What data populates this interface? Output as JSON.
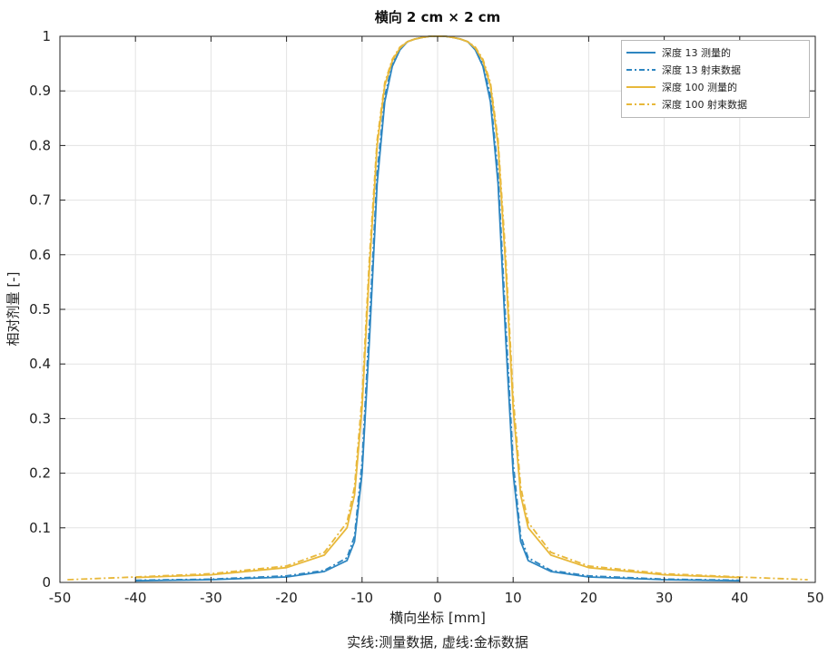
{
  "chart_data": {
    "type": "line",
    "title": "横向 2 cm × 2 cm",
    "xlabel": "横向坐标 [mm]",
    "ylabel": "相对剂量 [-]",
    "caption": "实线:测量数据, 虚线:金标数据",
    "xlim": [
      -50,
      50
    ],
    "ylim": [
      0,
      1
    ],
    "xticks": [
      "-50",
      "-40",
      "-30",
      "-20",
      "-10",
      "0",
      "10",
      "20",
      "30",
      "40",
      "50"
    ],
    "yticks": [
      "0",
      "0.1",
      "0.2",
      "0.3",
      "0.4",
      "0.5",
      "0.6",
      "0.7",
      "0.8",
      "0.9",
      "1"
    ],
    "grid": true,
    "legend_position": "top-right",
    "colors": {
      "depth13": "#2E86C1",
      "depth100": "#E8B83A"
    },
    "series": [
      {
        "name": "深度 13 测量的",
        "style": "solid",
        "color": "#2E86C1",
        "x": [
          -40,
          -30,
          -20,
          -15,
          -12,
          -11,
          -10,
          -9,
          -8,
          -7,
          -6,
          -5,
          -4,
          -3,
          -2,
          -1,
          0,
          1,
          2,
          3,
          4,
          5,
          6,
          7,
          8,
          9,
          10,
          11,
          12,
          15,
          20,
          30,
          40
        ],
        "y": [
          0.003,
          0.005,
          0.01,
          0.02,
          0.04,
          0.075,
          0.2,
          0.45,
          0.73,
          0.88,
          0.945,
          0.975,
          0.99,
          0.995,
          0.998,
          1.0,
          1.0,
          1.0,
          0.998,
          0.995,
          0.99,
          0.975,
          0.945,
          0.88,
          0.73,
          0.45,
          0.2,
          0.075,
          0.04,
          0.02,
          0.01,
          0.005,
          0.003
        ]
      },
      {
        "name": "深度 13 射束数据",
        "style": "dashdot",
        "color": "#2E86C1",
        "x": [
          -40,
          -30,
          -20,
          -15,
          -12,
          -11,
          -10,
          -9,
          -8,
          -7,
          -6,
          -5,
          -4,
          -3,
          -2,
          -1,
          0,
          1,
          2,
          3,
          4,
          5,
          6,
          7,
          8,
          9,
          10,
          11,
          12,
          15,
          20,
          30,
          40
        ],
        "y": [
          0.004,
          0.006,
          0.012,
          0.022,
          0.045,
          0.085,
          0.22,
          0.48,
          0.75,
          0.89,
          0.95,
          0.978,
          0.99,
          0.995,
          0.998,
          1.0,
          1.0,
          1.0,
          0.998,
          0.995,
          0.99,
          0.978,
          0.95,
          0.89,
          0.75,
          0.48,
          0.22,
          0.085,
          0.045,
          0.022,
          0.012,
          0.006,
          0.004
        ]
      },
      {
        "name": "深度 100 测量的",
        "style": "solid",
        "color": "#E8B83A",
        "x": [
          -40,
          -30,
          -20,
          -15,
          -12,
          -11,
          -10,
          -9,
          -8,
          -7,
          -6,
          -5,
          -4,
          -3,
          -2,
          -1,
          0,
          1,
          2,
          3,
          4,
          5,
          6,
          7,
          8,
          9,
          10,
          11,
          12,
          15,
          20,
          30,
          40
        ],
        "y": [
          0.009,
          0.014,
          0.027,
          0.05,
          0.1,
          0.16,
          0.32,
          0.58,
          0.8,
          0.91,
          0.955,
          0.978,
          0.99,
          0.995,
          0.998,
          1.0,
          1.0,
          1.0,
          0.998,
          0.995,
          0.99,
          0.978,
          0.955,
          0.91,
          0.8,
          0.58,
          0.32,
          0.16,
          0.1,
          0.05,
          0.027,
          0.014,
          0.009
        ]
      },
      {
        "name": "深度 100 射束数据",
        "style": "dashdot",
        "color": "#E8B83A",
        "x": [
          -49,
          -40,
          -30,
          -20,
          -15,
          -12,
          -11,
          -10,
          -9,
          -8,
          -7,
          -6,
          -5,
          -4,
          -3,
          -2,
          -1,
          0,
          1,
          2,
          3,
          4,
          5,
          6,
          7,
          8,
          9,
          10,
          11,
          12,
          15,
          20,
          30,
          40,
          49
        ],
        "y": [
          0.005,
          0.01,
          0.016,
          0.03,
          0.055,
          0.11,
          0.175,
          0.34,
          0.6,
          0.81,
          0.915,
          0.958,
          0.98,
          0.99,
          0.995,
          0.998,
          1.0,
          1.0,
          1.0,
          0.998,
          0.995,
          0.99,
          0.98,
          0.958,
          0.915,
          0.81,
          0.6,
          0.34,
          0.175,
          0.11,
          0.055,
          0.03,
          0.016,
          0.01,
          0.005
        ]
      }
    ]
  }
}
